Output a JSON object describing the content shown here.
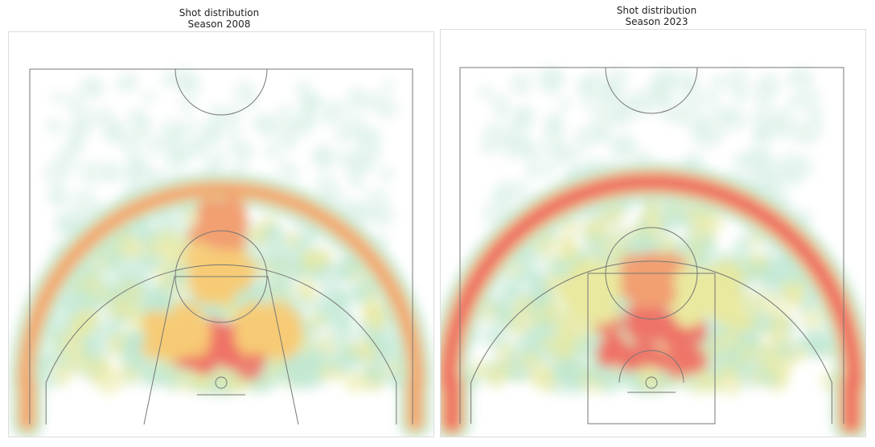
{
  "chart_data": [
    {
      "type": "heatmap",
      "title": "Shot distribution",
      "subtitle": "Season 2008",
      "colors": [
        "#d8efe6",
        "#b9e6cf",
        "#e8e89a",
        "#f7c96e",
        "#f29a6a",
        "#ee6b5f"
      ],
      "hotspots": [
        {
          "x": 0,
          "y": 5,
          "level": 6
        },
        {
          "x": 0,
          "y": 22,
          "level": 5
        },
        {
          "x": 0,
          "y": 15,
          "level": 4
        },
        {
          "x": -6,
          "y": 7,
          "level": 4
        },
        {
          "x": 6,
          "y": 7,
          "level": 4
        }
      ],
      "three_point_band_level": 5,
      "three_point_band_shape": "arc",
      "court": {
        "style": "2008",
        "key_width": 12,
        "three_point_radius": 23.75
      }
    },
    {
      "type": "heatmap",
      "title": "Shot distribution",
      "subtitle": "Season 2023",
      "colors": [
        "#d8efe6",
        "#b9e6cf",
        "#e8e89a",
        "#f7c96e",
        "#f29a6a",
        "#ee6b5f"
      ],
      "hotspots": [
        {
          "x": 0,
          "y": 6,
          "level": 6
        },
        {
          "x": 0,
          "y": 14,
          "level": 5
        },
        {
          "x": -7,
          "y": 12,
          "level": 3
        },
        {
          "x": 7,
          "y": 12,
          "level": 3
        }
      ],
      "three_point_band_level": 6,
      "three_point_band_shape": "arc",
      "court": {
        "style": "2023",
        "key_width": 16,
        "three_point_radius": 23.75
      }
    }
  ]
}
